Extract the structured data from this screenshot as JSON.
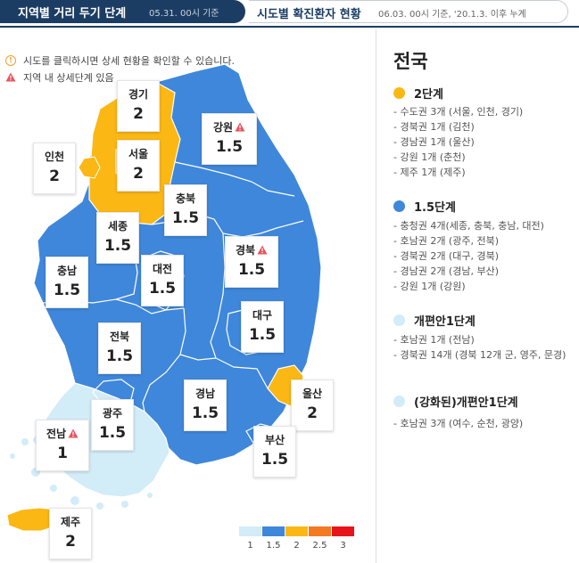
{
  "tabs": {
    "active": {
      "title": "지역별 거리 두기 단계",
      "sub": "05.31. 00시 기준"
    },
    "inactive": {
      "title": "시도별 확진환자 현황",
      "sub": "06.03. 00시 기준, '20.1.3. 이후 누계"
    }
  },
  "notes": {
    "click_hint": "시도를 클릭하시면 상세 현황을 확인할 수 있습니다.",
    "warning_hint": "지역 내 상세단계 있음"
  },
  "colors": {
    "level_1": "#d2ecf8",
    "level_1_5": "#3f87db",
    "level_2": "#fbb714",
    "level_2_5": "#f47920",
    "level_3": "#e8141b",
    "navy": "#1c3d63",
    "warning": "#e8545a"
  },
  "regions": [
    {
      "name": "경기",
      "level": "2",
      "warning": false
    },
    {
      "name": "강원",
      "level": "1.5",
      "warning": true
    },
    {
      "name": "인천",
      "level": "2",
      "warning": false
    },
    {
      "name": "서울",
      "level": "2",
      "warning": false
    },
    {
      "name": "충북",
      "level": "1.5",
      "warning": false
    },
    {
      "name": "세종",
      "level": "1.5",
      "warning": false
    },
    {
      "name": "경북",
      "level": "1.5",
      "warning": true
    },
    {
      "name": "충남",
      "level": "1.5",
      "warning": false
    },
    {
      "name": "대전",
      "level": "1.5",
      "warning": false
    },
    {
      "name": "대구",
      "level": "1.5",
      "warning": false
    },
    {
      "name": "전북",
      "level": "1.5",
      "warning": false
    },
    {
      "name": "경남",
      "level": "1.5",
      "warning": false
    },
    {
      "name": "울산",
      "level": "2",
      "warning": false
    },
    {
      "name": "광주",
      "level": "1.5",
      "warning": false
    },
    {
      "name": "전남",
      "level": "1",
      "warning": true
    },
    {
      "name": "부산",
      "level": "1.5",
      "warning": false
    },
    {
      "name": "제주",
      "level": "2",
      "warning": false
    }
  ],
  "scale": [
    "1",
    "1.5",
    "2",
    "2.5",
    "3"
  ],
  "sidebar": {
    "title": "전국",
    "levels": [
      {
        "label": "2단계",
        "items": [
          "- 수도권 3개 (서울, 인천, 경기)",
          "- 경북권 1개 (김천)",
          "- 경남권 1개 (울산)",
          "- 강원 1개 (춘천)",
          "- 제주 1개 (제주)"
        ]
      },
      {
        "label": "1.5단계",
        "items": [
          "- 충청권 4개(세종, 충북, 충남, 대전)",
          "- 호남권 2개 (광주, 전북)",
          "- 경북권 2개 (대구, 경북)",
          "- 경남권 2개 (경남, 부산)",
          "- 강원 1개 (강원)"
        ]
      },
      {
        "label": "개편안1단계",
        "items": [
          "- 호남권 1개 (전남)",
          "- 경북권 14개 (경북 12개 군, 영주, 문경)"
        ]
      },
      {
        "label": "(강화된)개편안1단계",
        "items": [
          "- 호남권 3개 (여수, 순천, 광양)"
        ]
      }
    ]
  }
}
